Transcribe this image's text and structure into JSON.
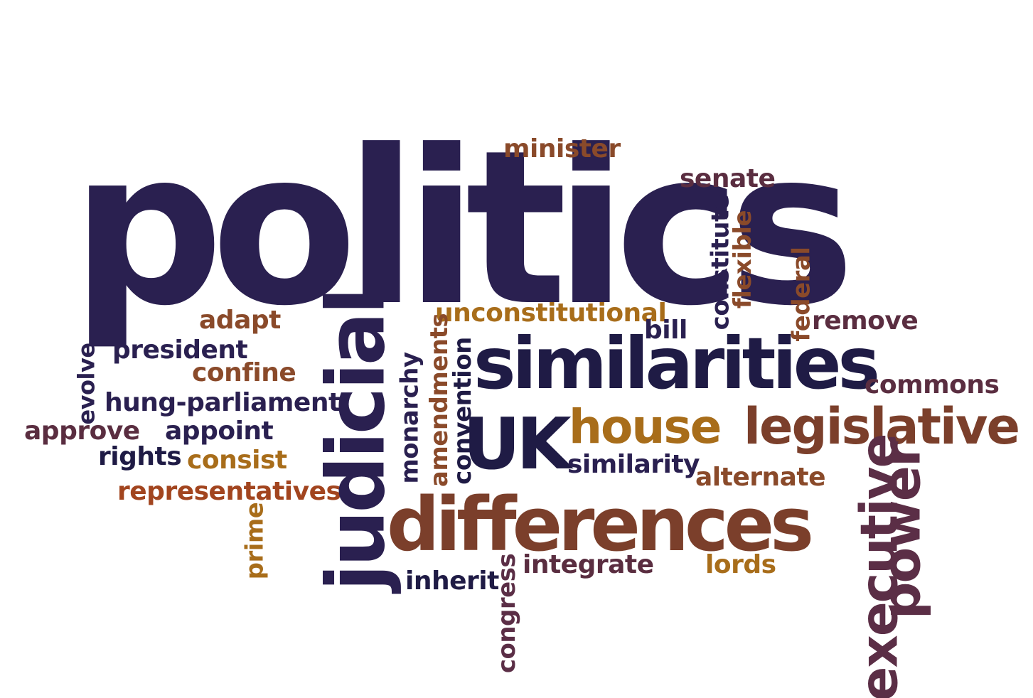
{
  "words": {
    "politics": "politics",
    "minister": "minister",
    "senate": "senate",
    "constitute": "constitute",
    "flexible": "flexible",
    "federal": "federal",
    "remove": "remove",
    "unconstitutional": "unconstitutional",
    "bill": "bill",
    "similarities": "similarities",
    "commons": "commons",
    "adapt": "adapt",
    "president": "president",
    "confine": "confine",
    "evolve": "evolve",
    "hung_parliament": "hung-parliament",
    "approve": "approve",
    "appoint": "appoint",
    "rights": "rights",
    "consist": "consist",
    "representatives": "representatives",
    "prime": "prime",
    "judicial": "judicial",
    "monarchy": "monarchy",
    "amendments": "amendments",
    "convention": "convention",
    "uk": "UK",
    "house": "house",
    "similarity": "similarity",
    "legislative": "legislative",
    "alternate": "alternate",
    "differences": "differences",
    "executive": "executive",
    "power": "power",
    "integrate": "integrate",
    "lords": "lords",
    "inherit": "inherit",
    "congress": "congress"
  },
  "colors": {
    "navy": "#2a2050",
    "brown": "#7b3f2b",
    "maroon": "#5a2d40",
    "gold": "#a86d1a",
    "rust": "#a2451f"
  }
}
